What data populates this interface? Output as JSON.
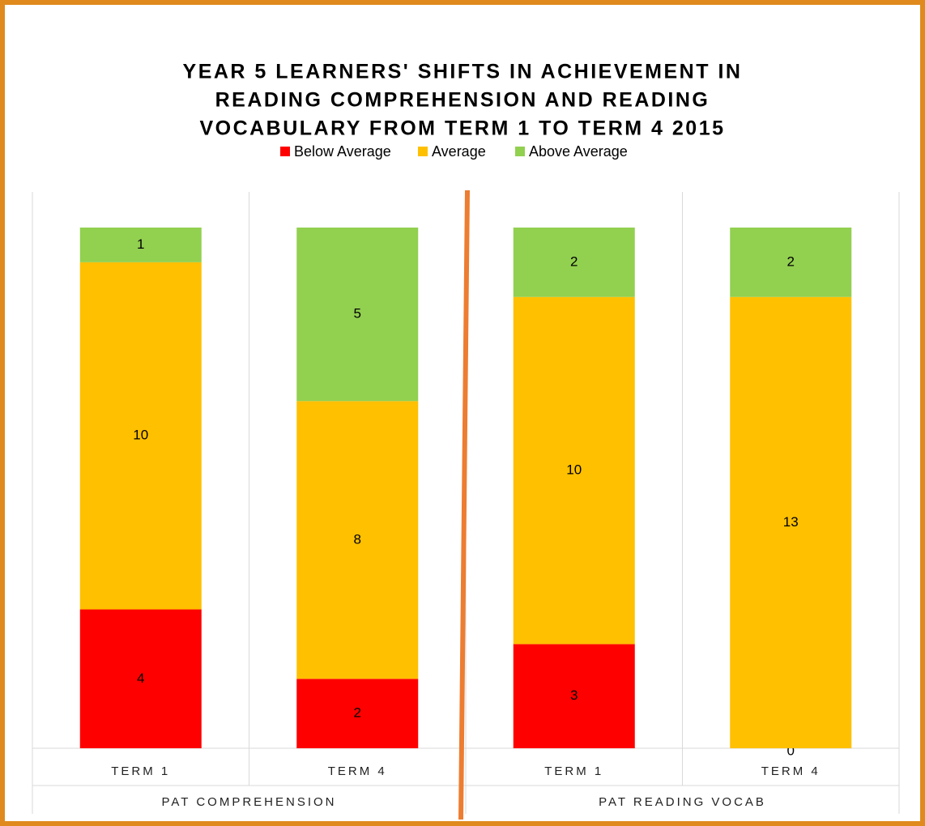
{
  "chart_data": {
    "type": "stacked-bar",
    "title": [
      "YEAR 5 LEARNERS' SHIFTS IN ACHIEVEMENT IN",
      "READING COMPREHENSION AND READING",
      "VOCABULARY FROM TERM 1 TO TERM 4 2015"
    ],
    "groups": [
      {
        "name": "PAT COMPREHENSION",
        "categories": [
          "TERM 1",
          "TERM 4"
        ]
      },
      {
        "name": "PAT READING VOCAB",
        "categories": [
          "TERM 1",
          "TERM 4"
        ]
      }
    ],
    "series": [
      {
        "name": "Below Average",
        "color": "#ff0000",
        "values": [
          4,
          2,
          3,
          0
        ]
      },
      {
        "name": "Average",
        "color": "#ffc000",
        "values": [
          10,
          8,
          10,
          13
        ]
      },
      {
        "name": "Above Average",
        "color": "#92d050",
        "values": [
          1,
          5,
          2,
          2
        ]
      }
    ],
    "ylim": [
      0,
      15
    ],
    "legend": "top"
  }
}
